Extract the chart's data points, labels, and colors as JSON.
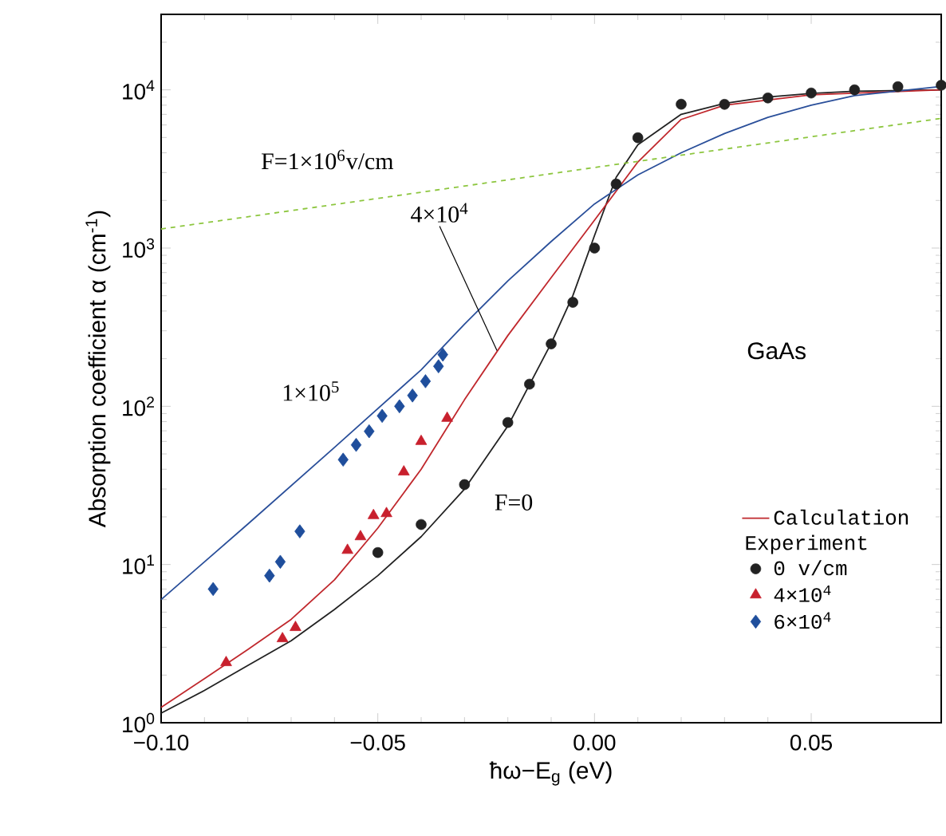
{
  "chart_data": {
    "type": "line",
    "xlabel": "ħω−E$_{g}$ (eV)",
    "ylabel": "Absorption coefficient  α  (cm$^{-1}$)",
    "xlim": [
      -0.1,
      0.08
    ],
    "ylim": [
      1,
      30000
    ],
    "log": "y",
    "legend": "bottom right",
    "legend_title": "Experiment",
    "xticks": [
      {
        "value": -0.1,
        "label": "−0.10"
      },
      {
        "value": -0.05,
        "label": "−0.05"
      },
      {
        "value": 0,
        "label": "0.00"
      },
      {
        "value": 0.05,
        "label": "0.05"
      }
    ],
    "yticks": [
      {
        "value": 1,
        "label": "10$^{0}$"
      },
      {
        "value": 10,
        "label": "10$^{1}$"
      },
      {
        "value": 100,
        "label": "10$^{2}$"
      },
      {
        "value": 1000,
        "label": "10$^{3}$"
      },
      {
        "value": 10000,
        "label": "10$^{4}$"
      }
    ],
    "series": [
      {
        "color": "#222222",
        "marker": "none",
        "line_style": "solid",
        "x": [
          -0.1,
          -0.09,
          -0.08,
          -0.07,
          -0.06,
          -0.05,
          -0.04,
          -0.03,
          -0.02,
          -0.01,
          -0.005,
          0,
          0.005,
          0.01,
          0.02,
          0.03,
          0.04,
          0.05,
          0.06,
          0.08
        ],
        "values": [
          1.15,
          1.6,
          2.3,
          3.3,
          5.2,
          8.5,
          15,
          30,
          75,
          250,
          500,
          1200,
          2800,
          4500,
          7000,
          8200,
          9000,
          9500,
          9800,
          10000
        ]
      },
      {
        "name": "Calculation",
        "color": "#c0282d",
        "marker": "none",
        "line_style": "solid",
        "x": [
          -0.1,
          -0.09,
          -0.08,
          -0.07,
          -0.06,
          -0.05,
          -0.04,
          -0.03,
          -0.02,
          -0.01,
          0,
          0.01,
          0.02,
          0.03,
          0.05,
          0.08
        ],
        "values": [
          1.25,
          1.9,
          2.9,
          4.5,
          8,
          17,
          40,
          110,
          280,
          650,
          1500,
          3500,
          6500,
          8000,
          9300,
          10000
        ]
      },
      {
        "color": "#2a4f9a",
        "marker": "none",
        "line_style": "solid",
        "x": [
          -0.1,
          -0.08,
          -0.06,
          -0.04,
          -0.03,
          -0.02,
          -0.01,
          0,
          0.01,
          0.02,
          0.03,
          0.04,
          0.05,
          0.06,
          0.08
        ],
        "values": [
          6,
          18,
          55,
          170,
          330,
          620,
          1100,
          1900,
          2900,
          4000,
          5300,
          6700,
          8000,
          9200,
          10500
        ]
      },
      {
        "color": "#8dc63f",
        "marker": "none",
        "line_style": "dashed",
        "x": [
          -0.1,
          -0.05,
          0,
          0.05,
          0.08
        ],
        "values": [
          1320,
          2060,
          3230,
          5050,
          6600
        ]
      },
      {
        "type": "scatter",
        "name": "0 v/cm",
        "color": "#222222",
        "marker": "circle",
        "x": [
          -0.05,
          -0.04,
          -0.03,
          -0.02,
          -0.015,
          -0.01,
          -0.005,
          0,
          0.005,
          0.01,
          0.02,
          0.03,
          0.04,
          0.05,
          0.06,
          0.07,
          0.08
        ],
        "values": [
          11.9,
          17.9,
          32,
          79,
          138,
          248,
          454,
          1000,
          2540,
          4980,
          8110,
          8100,
          8890,
          9550,
          10000,
          10470,
          10700
        ]
      },
      {
        "type": "scatter",
        "name": "4×10$^{4}$",
        "color": "#c8202d",
        "marker": "triangle",
        "x": [
          -0.085,
          -0.072,
          -0.069,
          -0.057,
          -0.054,
          -0.051,
          -0.048,
          -0.044,
          -0.04,
          -0.034
        ],
        "values": [
          2.4,
          3.4,
          4.0,
          12.3,
          15,
          20.4,
          21,
          38.5,
          60,
          84
        ]
      },
      {
        "type": "scatter",
        "name": "6×10$^{4}$",
        "color": "#1f4e9c",
        "marker": "diamond",
        "x": [
          -0.088,
          -0.075,
          -0.0725,
          -0.068,
          -0.058,
          -0.055,
          -0.052,
          -0.049,
          -0.045,
          -0.042,
          -0.039,
          -0.036,
          -0.035
        ],
        "values": [
          7.0,
          8.5,
          10.4,
          16.2,
          46,
          57,
          69.5,
          87,
          100,
          117,
          144,
          179,
          212
        ]
      }
    ],
    "annotations": [
      "F=1×10$^{6}$v/cm",
      {
        "text": "4×10$^{4}$",
        "x": -0.0225,
        "y": 225
      },
      "1×10$^{5}$",
      "F=0",
      "GaAs"
    ]
  }
}
